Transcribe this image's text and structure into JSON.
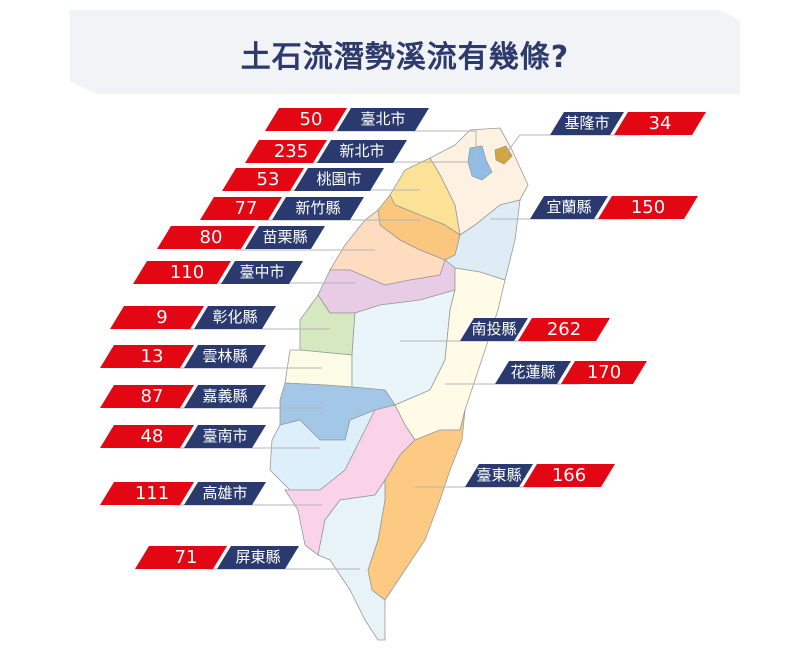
{
  "title": "土石流潛勢溪流有幾條?",
  "colors": {
    "count_bg": "#e30613",
    "name_bg": "#2a3a6e",
    "title": "#2c3a6c"
  },
  "counties": [
    {
      "name": "臺北市",
      "count": "50"
    },
    {
      "name": "新北市",
      "count": "235"
    },
    {
      "name": "桃園市",
      "count": "53"
    },
    {
      "name": "新竹縣",
      "count": "77"
    },
    {
      "name": "苗栗縣",
      "count": "80"
    },
    {
      "name": "臺中市",
      "count": "110"
    },
    {
      "name": "彰化縣",
      "count": "9"
    },
    {
      "name": "雲林縣",
      "count": "13"
    },
    {
      "name": "嘉義縣",
      "count": "87"
    },
    {
      "name": "臺南市",
      "count": "48"
    },
    {
      "name": "高雄市",
      "count": "111"
    },
    {
      "name": "屏東縣",
      "count": "71"
    },
    {
      "name": "基隆市",
      "count": "34"
    },
    {
      "name": "宜蘭縣",
      "count": "150"
    },
    {
      "name": "南投縣",
      "count": "262"
    },
    {
      "name": "花蓮縣",
      "count": "170"
    },
    {
      "name": "臺東縣",
      "count": "166"
    }
  ]
}
